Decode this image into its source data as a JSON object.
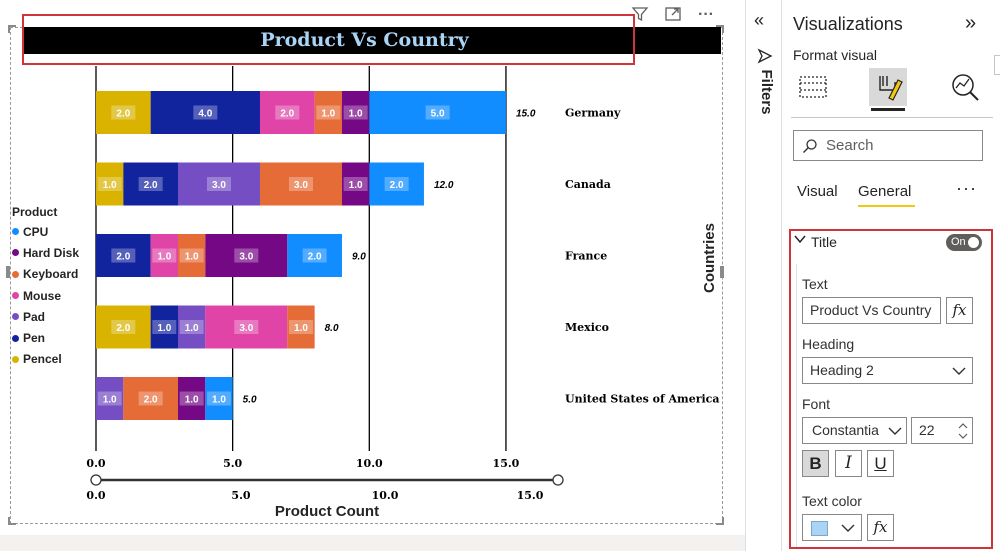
{
  "visual": {
    "title": "Product Vs Country",
    "header_icons": [
      "filter-icon",
      "focus-mode-icon",
      "more-options-icon"
    ]
  },
  "legend": {
    "title": "Product",
    "items": [
      {
        "label": "CPU",
        "color": "#118dff"
      },
      {
        "label": "Hard Disk",
        "color": "#750985"
      },
      {
        "label": "Keyboard",
        "color": "#e66c37"
      },
      {
        "label": "Mouse",
        "color": "#e044a7"
      },
      {
        "label": "Pad",
        "color": "#744ec2"
      },
      {
        "label": "Pen",
        "color": "#12239e"
      },
      {
        "label": "Pencel",
        "color": "#d9b300"
      }
    ]
  },
  "chart_data": {
    "type": "bar",
    "orientation": "horizontal",
    "stacked": true,
    "xlabel": "Product Count",
    "ylabel": "Countries",
    "xlim": [
      0,
      16.5
    ],
    "x_ticks": [
      "0.0",
      "5.0",
      "10.0",
      "15.0"
    ],
    "slider_ticks": [
      "0.0",
      "5.0",
      "10.0",
      "15.0"
    ],
    "gridlines": true,
    "legend_position": "left",
    "rows": [
      {
        "category": "Germany",
        "total": 15.0,
        "total_label": "15.0",
        "segments": [
          {
            "series": "Pencel",
            "value": 2.0
          },
          {
            "series": "Pen",
            "value": 4.0
          },
          {
            "series": "Mouse",
            "value": 2.0
          },
          {
            "series": "Keyboard",
            "value": 1.0
          },
          {
            "series": "Hard Disk",
            "value": 1.0
          },
          {
            "series": "CPU",
            "value": 5.0
          }
        ]
      },
      {
        "category": "Canada",
        "total": 12.0,
        "total_label": "12.0",
        "segments": [
          {
            "series": "Pencel",
            "value": 1.0
          },
          {
            "series": "Pen",
            "value": 2.0
          },
          {
            "series": "Pad",
            "value": 3.0
          },
          {
            "series": "Keyboard",
            "value": 3.0
          },
          {
            "series": "Hard Disk",
            "value": 1.0
          },
          {
            "series": "CPU",
            "value": 2.0
          }
        ]
      },
      {
        "category": "France",
        "total": 9.0,
        "total_label": "9.0",
        "segments": [
          {
            "series": "Pen",
            "value": 2.0
          },
          {
            "series": "Mouse",
            "value": 1.0
          },
          {
            "series": "Keyboard",
            "value": 1.0
          },
          {
            "series": "Hard Disk",
            "value": 3.0
          },
          {
            "series": "CPU",
            "value": 2.0
          }
        ]
      },
      {
        "category": "Mexico",
        "total": 8.0,
        "total_label": "8.0",
        "segments": [
          {
            "series": "Pencel",
            "value": 2.0
          },
          {
            "series": "Pen",
            "value": 1.0
          },
          {
            "series": "Pad",
            "value": 1.0
          },
          {
            "series": "Mouse",
            "value": 3.0
          },
          {
            "series": "Keyboard",
            "value": 1.0
          }
        ]
      },
      {
        "category": "United States of America",
        "total": 5.0,
        "total_label": "5.0",
        "segments": [
          {
            "series": "Pad",
            "value": 1.0
          },
          {
            "series": "Keyboard",
            "value": 2.0
          },
          {
            "series": "Hard Disk",
            "value": 1.0
          },
          {
            "series": "CPU",
            "value": 1.0
          }
        ]
      }
    ]
  },
  "filters": {
    "label": "Filters"
  },
  "viz_pane": {
    "title": "Visualizations",
    "subtitle": "Format visual",
    "search_placeholder": "Search",
    "tabs": [
      "Visual",
      "General"
    ],
    "active_tab": "General",
    "more": "···",
    "title_card": {
      "heading": "Title",
      "toggle": "On",
      "text_label": "Text",
      "text_value": "Product Vs Country",
      "fx": "fx",
      "heading_label": "Heading",
      "heading_value": "Heading 2",
      "font_label": "Font",
      "font_value": "Constantia",
      "font_size": "22",
      "bold": "B",
      "italic": "I",
      "underline": "U",
      "text_color_label": "Text color",
      "text_color": "#a9d4f5"
    }
  }
}
